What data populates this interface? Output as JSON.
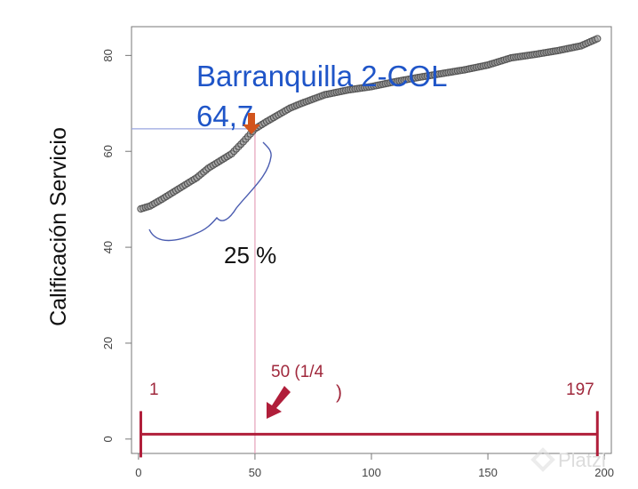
{
  "chart_data": {
    "type": "scatter",
    "title": "",
    "xlabel": "",
    "ylabel": "Calificación Servicio",
    "xlim": [
      -3,
      203
    ],
    "ylim": [
      -3,
      86
    ],
    "x_ticks": [
      "0",
      "50",
      "100",
      "150",
      "200"
    ],
    "y_ticks": [
      "0",
      "20",
      "40",
      "60",
      "80"
    ],
    "grid": false,
    "series_profile": [
      [
        1,
        48.0
      ],
      [
        5,
        48.6
      ],
      [
        10,
        50.0
      ],
      [
        15,
        51.5
      ],
      [
        20,
        53.0
      ],
      [
        25,
        54.5
      ],
      [
        30,
        56.5
      ],
      [
        35,
        58.0
      ],
      [
        40,
        59.5
      ],
      [
        45,
        62.0
      ],
      [
        50,
        64.7
      ],
      [
        55,
        66.2
      ],
      [
        60,
        67.6
      ],
      [
        65,
        69.0
      ],
      [
        70,
        70.0
      ],
      [
        80,
        71.8
      ],
      [
        90,
        72.8
      ],
      [
        100,
        73.5
      ],
      [
        110,
        74.5
      ],
      [
        120,
        75.4
      ],
      [
        130,
        76.2
      ],
      [
        140,
        77.0
      ],
      [
        150,
        78.0
      ],
      [
        160,
        79.5
      ],
      [
        170,
        80.2
      ],
      [
        180,
        81.0
      ],
      [
        190,
        82.0
      ],
      [
        197,
        83.5
      ]
    ],
    "n_points": 197,
    "marker_color": "#555555",
    "reference": {
      "x": 50,
      "y": 64.7,
      "color": "#9aa6e0"
    },
    "annotations": {
      "city": "Barranquilla 2-COL",
      "value": "64,7",
      "percent": "25 %",
      "quartile": "50 (1/4",
      "quartile_close": ")",
      "range_start": "1",
      "range_end": "197"
    },
    "range_bar": {
      "from": 1,
      "to": 197,
      "y": 1,
      "color": "#b01e3a"
    }
  },
  "watermark": "Platzi"
}
